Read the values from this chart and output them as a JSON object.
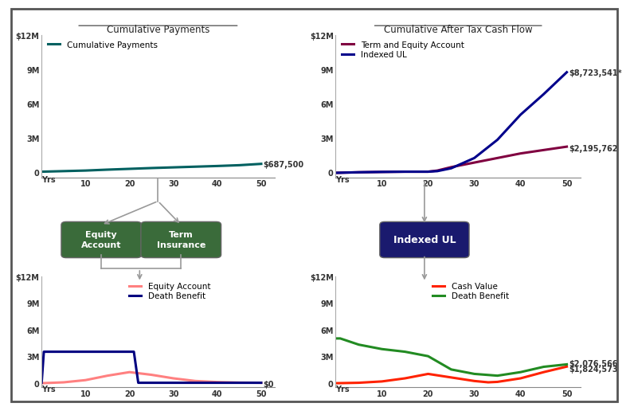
{
  "bg_color": "#ffffff",
  "top_left_title": "Cumulative Payments",
  "top_right_title": "Cumulative After Tax Cash Flow",
  "cum_pay_x": [
    0,
    5,
    10,
    15,
    20,
    25,
    30,
    35,
    40,
    45,
    50
  ],
  "cum_pay_y": [
    0,
    0.05,
    0.1,
    0.18,
    0.25,
    0.32,
    0.38,
    0.44,
    0.5,
    0.57,
    0.6875
  ],
  "cum_pay_color": "#006060",
  "cum_pay_label": "Cumulative Payments",
  "cum_pay_end_label": "$687,500",
  "term_equity_x": [
    0,
    5,
    10,
    15,
    20,
    22,
    25,
    30,
    35,
    40,
    45,
    50
  ],
  "term_equity_y": [
    -0.1,
    -0.05,
    -0.02,
    0.0,
    0.0,
    0.1,
    0.4,
    0.8,
    1.2,
    1.6,
    1.9,
    2.195762
  ],
  "term_equity_color": "#800040",
  "term_equity_label": "Term and Equity Account",
  "term_equity_end_label": "$2,195,762",
  "indexed_ul_x": [
    0,
    5,
    10,
    15,
    20,
    22,
    25,
    30,
    35,
    40,
    45,
    50
  ],
  "indexed_ul_y": [
    -0.1,
    -0.05,
    -0.02,
    0.0,
    0.0,
    0.05,
    0.3,
    1.2,
    2.8,
    5.0,
    6.8,
    8.723541
  ],
  "indexed_ul_color": "#00008B",
  "indexed_ul_label": "Indexed UL",
  "indexed_ul_end_label": "$8,723,541*",
  "eq_acc_x": [
    0,
    5,
    10,
    15,
    20,
    25,
    30,
    35,
    40,
    45,
    50
  ],
  "eq_acc_y": [
    -0.05,
    0.05,
    0.3,
    0.8,
    1.2,
    0.9,
    0.5,
    0.2,
    0.08,
    0.02,
    0.0
  ],
  "eq_acc_color": "#FF8080",
  "eq_acc_label": "Equity Account",
  "eq_acc_end_label": "$0",
  "death_ben_term_x": [
    0,
    0.5,
    20,
    21,
    22,
    50
  ],
  "death_ben_term_y": [
    0.0,
    3.5,
    3.5,
    3.5,
    0.0,
    0.0
  ],
  "death_ben_term_color": "#000080",
  "death_ben_term_label": "Death Benefit",
  "cv_ul_x": [
    0,
    3,
    5,
    10,
    15,
    20,
    25,
    30,
    33,
    35,
    40,
    45,
    50
  ],
  "cv_ul_y": [
    -0.05,
    -0.02,
    0.0,
    0.15,
    0.5,
    1.0,
    0.6,
    0.2,
    0.05,
    0.1,
    0.5,
    1.2,
    1.824573
  ],
  "cv_ul_color": "#FF2200",
  "cv_ul_label": "Cash Value",
  "cv_ul_end_label": "$1,824,573",
  "death_ben_ul_x": [
    0,
    1,
    5,
    10,
    15,
    20,
    25,
    30,
    35,
    40,
    45,
    50
  ],
  "death_ben_ul_y": [
    5.0,
    5.0,
    4.3,
    3.8,
    3.5,
    3.0,
    1.5,
    1.0,
    0.8,
    1.2,
    1.8,
    2.076566
  ],
  "death_ben_ul_color": "#228B22",
  "death_ben_ul_label": "Death Benefit",
  "death_ben_ul_end_label": "$2,076,566",
  "xticks": [
    10,
    20,
    30,
    40,
    50
  ],
  "box_equity_color": "#3A6B3A",
  "box_equity_text": "Equity\nAccount",
  "box_term_color": "#3A6B3A",
  "box_term_text": "Term\nInsurance",
  "box_indexed_color": "#1a1a6e",
  "box_indexed_text": "Indexed UL",
  "arrow_color": "#999999"
}
